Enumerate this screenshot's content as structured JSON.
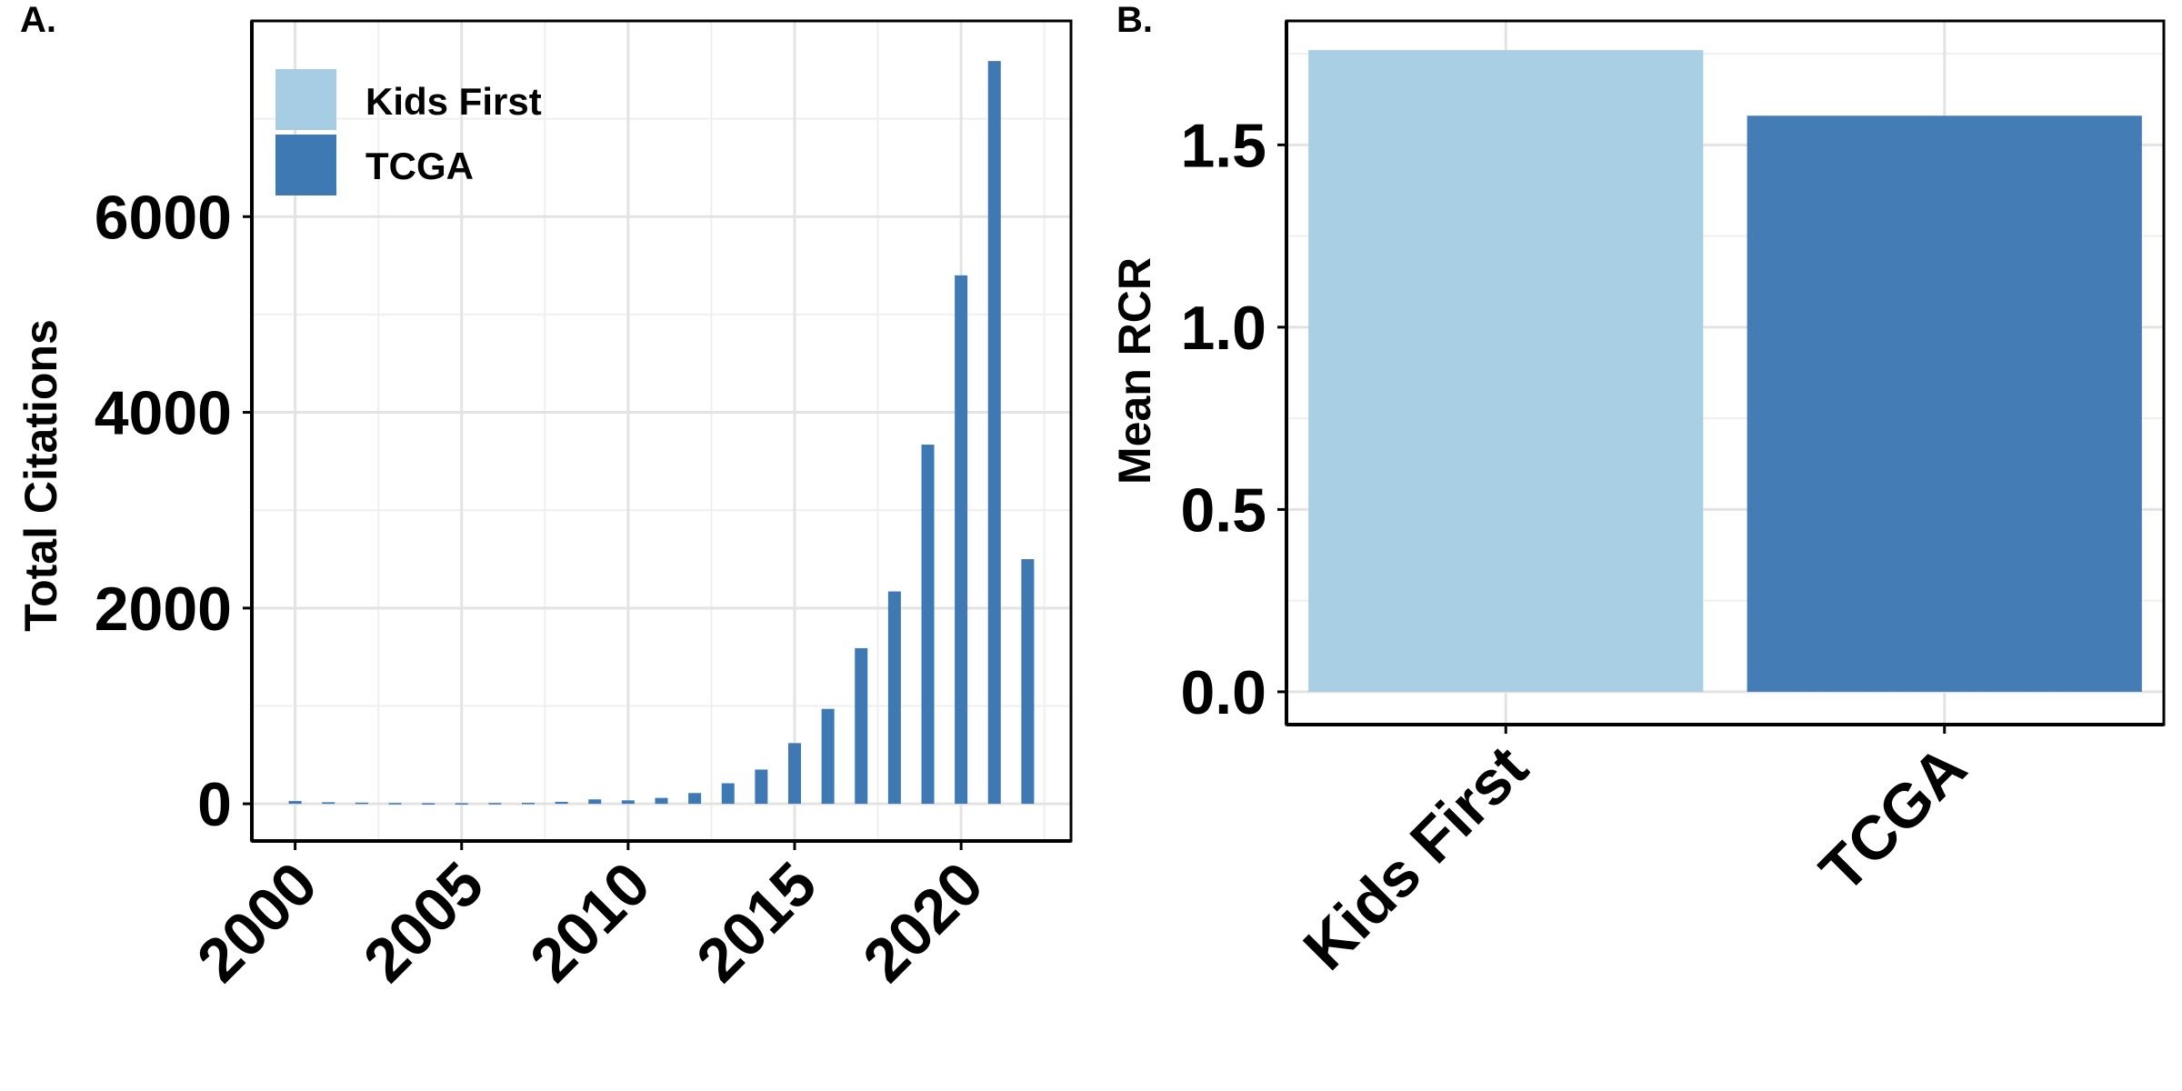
{
  "panel_a_label": "A.",
  "panel_b_label": "B.",
  "colors": {
    "kids_first": "#a6cde3",
    "tcga": "#3e79b3",
    "grid": "#e3e3e3"
  },
  "chart_data": [
    {
      "type": "bar",
      "ylabel": "Total Citations",
      "xlabel": "",
      "x_ticks": [
        "2000",
        "2005",
        "2010",
        "2015",
        "2020"
      ],
      "y_ticks": [
        "0",
        "2000",
        "4000",
        "6000"
      ],
      "xlim": [
        1998.7,
        2023.3
      ],
      "ylim": [
        -380,
        8000
      ],
      "grid": true,
      "legend_position": "top-left",
      "legend": [
        "Kids First",
        "TCGA"
      ],
      "series": [
        {
          "name": "TCGA",
          "x": [
            2000,
            2001,
            2002,
            2003,
            2004,
            2005,
            2006,
            2007,
            2008,
            2009,
            2010,
            2011,
            2012,
            2013,
            2014,
            2015,
            2016,
            2017,
            2018,
            2019,
            2020,
            2021,
            2022
          ],
          "values": [
            28,
            16,
            12,
            8,
            6,
            6,
            8,
            10,
            20,
            45,
            35,
            60,
            110,
            210,
            350,
            620,
            970,
            1590,
            2170,
            3670,
            5400,
            7590,
            2500
          ]
        }
      ]
    },
    {
      "type": "bar",
      "ylabel": "Mean RCR",
      "xlabel": "",
      "categories": [
        "Kids First",
        "TCGA"
      ],
      "y_ticks": [
        "0.0",
        "0.5",
        "1.0",
        "1.5"
      ],
      "ylim": [
        -0.09,
        1.84
      ],
      "grid": true,
      "values": [
        1.76,
        1.58
      ]
    }
  ]
}
